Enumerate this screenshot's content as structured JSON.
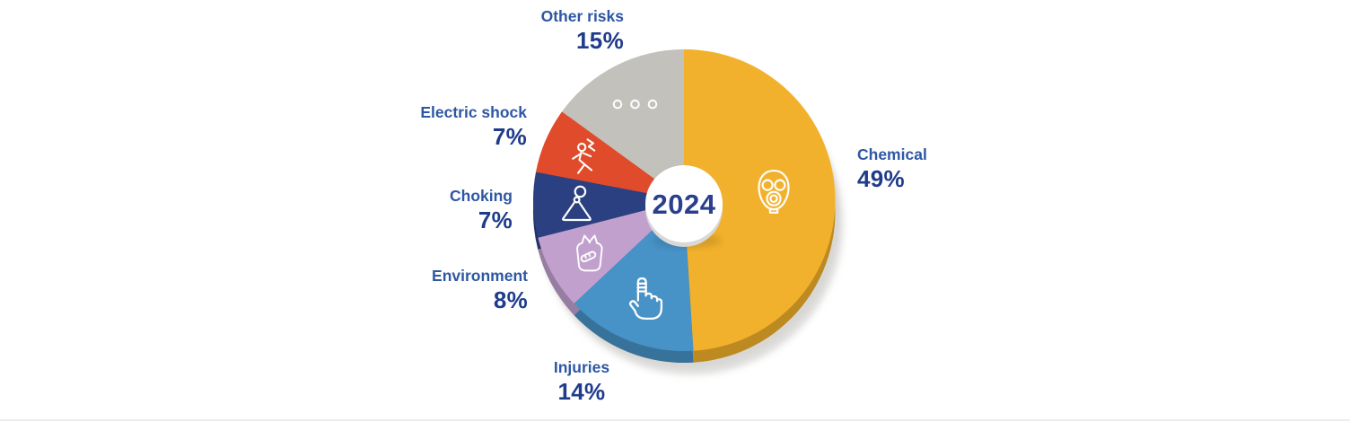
{
  "chart_data": {
    "type": "pie",
    "center_label": "2024",
    "unit": "%",
    "direction": "clockwise",
    "start_angle_deg": 0,
    "donut_center": true,
    "labels_position": "outside",
    "segments": [
      {
        "label": "Chemical",
        "value": 49,
        "pct_label": "49%",
        "color": "#F2B12C",
        "icon": "gas-mask"
      },
      {
        "label": "Injuries",
        "value": 14,
        "pct_label": "14%",
        "color": "#4792C7",
        "icon": "bandaged-finger"
      },
      {
        "label": "Environment",
        "value": 8,
        "pct_label": "8%",
        "color": "#C2A0CE",
        "icon": "plastic-bag"
      },
      {
        "label": "Choking",
        "value": 7,
        "pct_label": "7%",
        "color": "#2B4080",
        "icon": "choking-person"
      },
      {
        "label": "Electric shock",
        "value": 7,
        "pct_label": "7%",
        "color": "#E04C2B",
        "icon": "electrocuted-person"
      },
      {
        "label": "Other risks",
        "value": 15,
        "pct_label": "15%",
        "color": "#C3C1BC",
        "icon": "ellipsis-dots"
      }
    ],
    "colors": {
      "label_text": "#2E57A5",
      "percent_text": "#1F3C8C",
      "center_text": "#2B3F8E",
      "icon_stroke": "#FDFDFD",
      "base_disc": "#D8D7D4"
    }
  }
}
